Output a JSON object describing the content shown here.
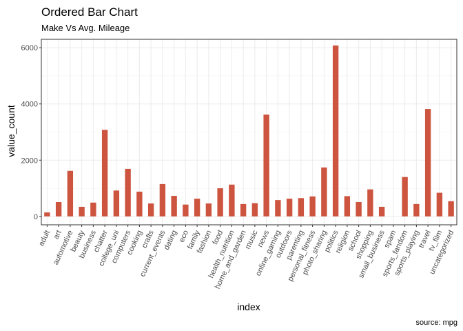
{
  "chart_data": {
    "type": "bar",
    "title": "Ordered Bar Chart",
    "subtitle": "Make Vs Avg. Mileage",
    "xlabel": "index",
    "ylabel": "value_count",
    "caption": "source: mpg",
    "ylim": [
      -300,
      6300
    ],
    "yticks": [
      0,
      2000,
      4000,
      6000
    ],
    "grid": true,
    "bar_color": "#cd5540",
    "categories": [
      "adult",
      "art",
      "automotive",
      "beauty",
      "business",
      "chatter",
      "college_uni",
      "computers",
      "cooking",
      "crafts",
      "current_events",
      "dating",
      "eco",
      "family",
      "fashion",
      "food",
      "health_nutrition",
      "home_and_garden",
      "music",
      "news",
      "online_gaming",
      "outdoors",
      "parenting",
      "personal_fitness",
      "photo_sharing",
      "politics",
      "religion",
      "school",
      "shopping",
      "small_business",
      "spam",
      "sports_fandom",
      "sports_playing",
      "travel",
      "tv_film",
      "uncategorized"
    ],
    "values": [
      140,
      510,
      1620,
      340,
      490,
      3080,
      920,
      1690,
      880,
      460,
      1150,
      730,
      420,
      630,
      460,
      1000,
      1130,
      440,
      470,
      3620,
      580,
      630,
      650,
      710,
      1740,
      6080,
      720,
      510,
      960,
      340,
      0,
      1400,
      440,
      3820,
      840,
      540
    ]
  }
}
